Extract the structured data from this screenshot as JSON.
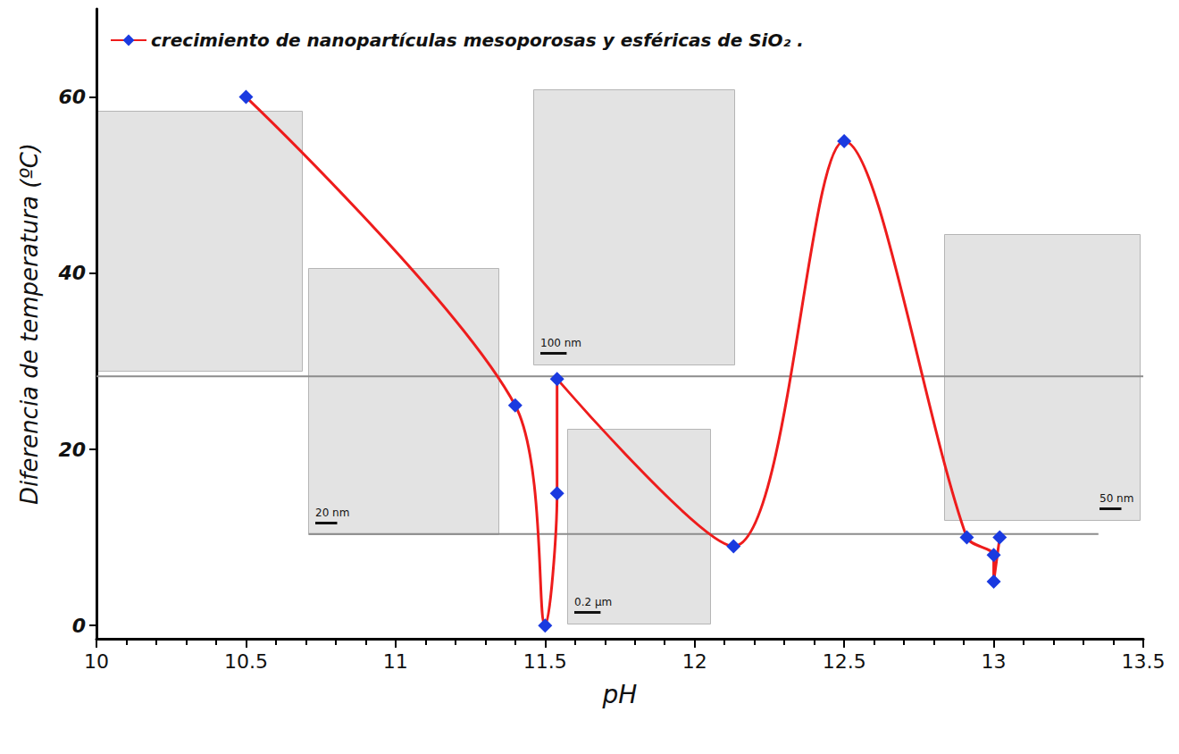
{
  "chart_data": {
    "type": "line",
    "x_label": "pH",
    "y_label": "Diferencia de temperatura (ºC)",
    "xlim": [
      10,
      13.5
    ],
    "xticks": [
      10,
      10.5,
      11,
      11.5,
      12,
      12.5,
      13,
      13.5
    ],
    "ylim": [
      -1.5,
      70
    ],
    "yticks": [
      0,
      20,
      40,
      60
    ],
    "grid": false,
    "legend": "top-left",
    "series": [
      {
        "name": "crecimiento de nanopartículas mesoporosas y esféricas de SiO₂ .",
        "color": "#ee1c1c",
        "marker": "diamond",
        "x": [
          10.5,
          11.4,
          11.5,
          11.54,
          11.54,
          12.13,
          12.5,
          12.91,
          13.0,
          13.0,
          13.02
        ],
        "values": [
          60,
          25,
          0,
          15,
          28,
          9,
          55,
          10,
          8,
          5,
          10
        ]
      }
    ],
    "reference_lines": [
      {
        "y": 28.3,
        "x": [
          10,
          13.5
        ]
      },
      {
        "y": 10.4,
        "x": [
          10.71,
          13.35
        ]
      }
    ],
    "inset_labels": [
      "20 nm",
      "100 nm",
      "0.2 µm",
      "50 nm"
    ]
  }
}
